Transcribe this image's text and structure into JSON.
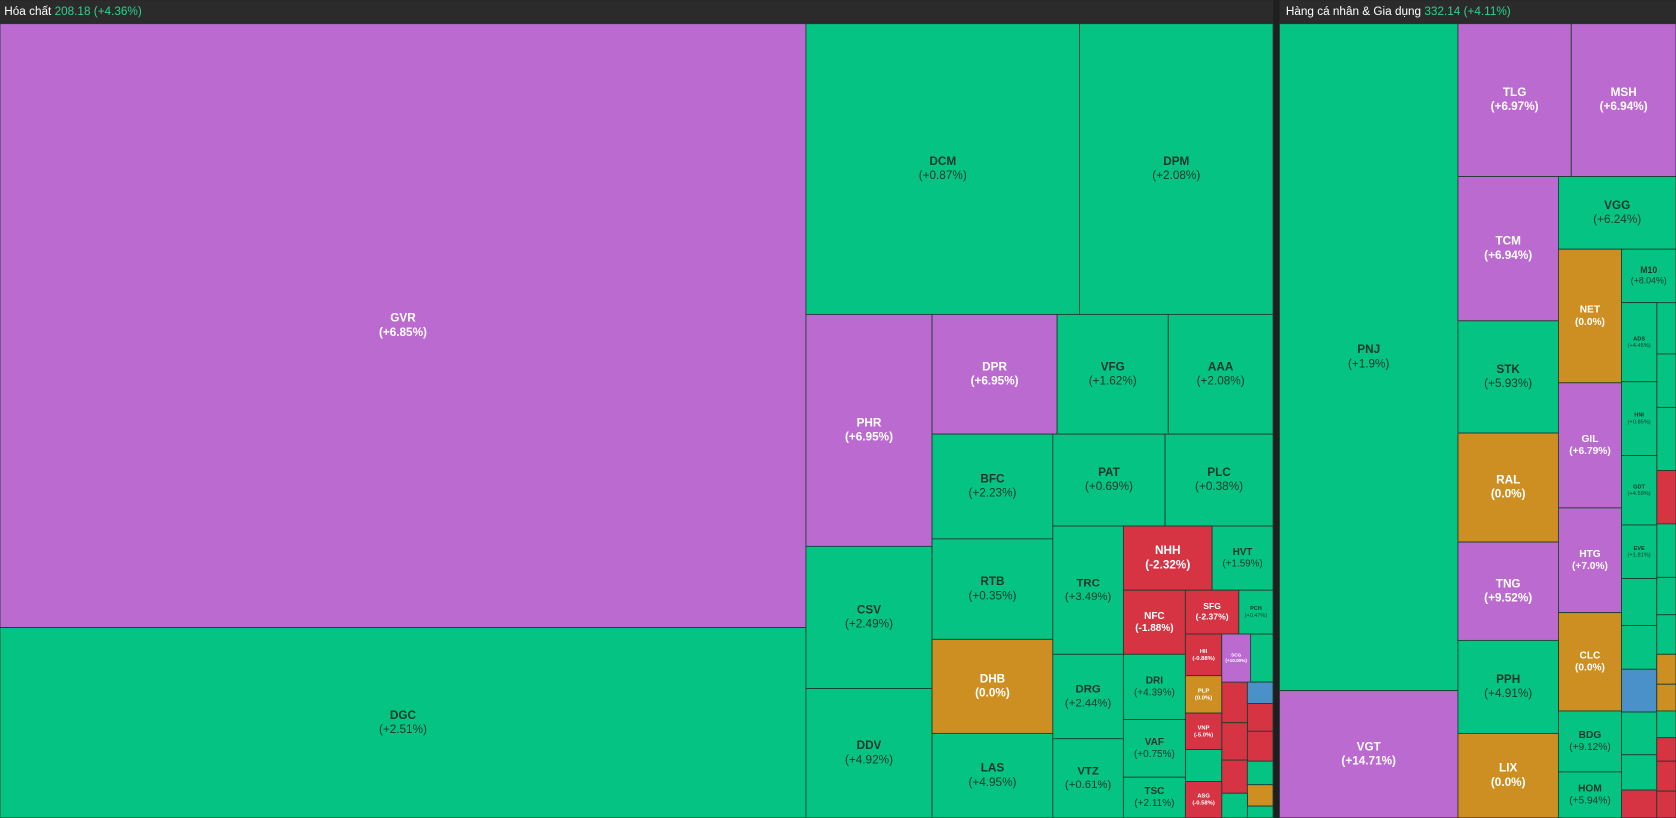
{
  "panels": [
    {
      "name": "Hóa chất",
      "index": "208.18",
      "change": "(+4.36%)",
      "tiles": [
        {
          "ticker": "GVR",
          "change": "(+6.85%)",
          "color": "#bb6bd0"
        },
        {
          "ticker": "DGC",
          "change": "(+2.51%)",
          "color": "#05c483"
        },
        {
          "ticker": "DCM",
          "change": "(+0.87%)",
          "color": "#05c483"
        },
        {
          "ticker": "DPM",
          "change": "(+2.08%)",
          "color": "#05c483"
        },
        {
          "ticker": "PHR",
          "change": "(+6.95%)",
          "color": "#bb6bd0"
        },
        {
          "ticker": "CSV",
          "change": "(+2.49%)",
          "color": "#05c483"
        },
        {
          "ticker": "DDV",
          "change": "(+4.92%)",
          "color": "#05c483"
        },
        {
          "ticker": "DPR",
          "change": "(+6.95%)",
          "color": "#bb6bd0"
        },
        {
          "ticker": "VFG",
          "change": "(+1.62%)",
          "color": "#05c483"
        },
        {
          "ticker": "AAA",
          "change": "(+2.08%)",
          "color": "#05c483"
        },
        {
          "ticker": "BFC",
          "change": "(+2.23%)",
          "color": "#05c483"
        },
        {
          "ticker": "PAT",
          "change": "(+0.69%)",
          "color": "#05c483"
        },
        {
          "ticker": "PLC",
          "change": "(+0.38%)",
          "color": "#05c483"
        },
        {
          "ticker": "RTB",
          "change": "(+0.35%)",
          "color": "#05c483"
        },
        {
          "ticker": "DHB",
          "change": "(0.0%)",
          "color": "#cd8f22"
        },
        {
          "ticker": "LAS",
          "change": "(+4.95%)",
          "color": "#05c483"
        },
        {
          "ticker": "TRC",
          "change": "(+3.49%)",
          "color": "#05c483"
        },
        {
          "ticker": "NHH",
          "change": "(-2.32%)",
          "color": "#d63343"
        },
        {
          "ticker": "HVT",
          "change": "(+1.59%)",
          "color": "#05c483"
        },
        {
          "ticker": "NFC",
          "change": "(-1.88%)",
          "color": "#d63343"
        },
        {
          "ticker": "SFG",
          "change": "(-2.37%)",
          "color": "#d63343"
        },
        {
          "ticker": "PCH",
          "change": "(+0.47%)",
          "color": "#05c483"
        },
        {
          "ticker": "DRG",
          "change": "(+2.44%)",
          "color": "#05c483"
        },
        {
          "ticker": "DRI",
          "change": "(+4.39%)",
          "color": "#05c483"
        },
        {
          "ticker": "VTZ",
          "change": "(+0.61%)",
          "color": "#05c483"
        },
        {
          "ticker": "VAF",
          "change": "(+0.75%)",
          "color": "#05c483"
        },
        {
          "ticker": "TSC",
          "change": "(+2.11%)",
          "color": "#05c483"
        },
        {
          "ticker": "HII",
          "change": "(-0.88%)",
          "color": "#d63343"
        },
        {
          "ticker": "SCG",
          "change": "(+10.00%)",
          "color": "#bb6bd0"
        },
        {
          "ticker": "PLP",
          "change": "(0.0%)",
          "color": "#cd8f22"
        },
        {
          "ticker": "VNP",
          "change": "(-5.0%)",
          "color": "#d63343"
        },
        {
          "ticker": "ASG",
          "change": "(-0.58%)",
          "color": "#d63343"
        }
      ]
    },
    {
      "name": "Hàng cá nhân & Gia dụng",
      "index": "332.14",
      "change": "(+4.11%)",
      "tiles": [
        {
          "ticker": "PNJ",
          "change": "(+1.9%)",
          "color": "#05c483"
        },
        {
          "ticker": "VGT",
          "change": "(+14.71%)",
          "color": "#bb6bd0"
        },
        {
          "ticker": "TLG",
          "change": "(+6.97%)",
          "color": "#bb6bd0"
        },
        {
          "ticker": "MSH",
          "change": "(+6.94%)",
          "color": "#bb6bd0"
        },
        {
          "ticker": "TCM",
          "change": "(+6.94%)",
          "color": "#bb6bd0"
        },
        {
          "ticker": "VGG",
          "change": "(+6.24%)",
          "color": "#05c483"
        },
        {
          "ticker": "STK",
          "change": "(+5.93%)",
          "color": "#05c483"
        },
        {
          "ticker": "NET",
          "change": "(0.0%)",
          "color": "#cd8f22"
        },
        {
          "ticker": "M10",
          "change": "(+8.04%)",
          "color": "#05c483"
        },
        {
          "ticker": "RAL",
          "change": "(0.0%)",
          "color": "#cd8f22"
        },
        {
          "ticker": "GIL",
          "change": "(+6.79%)",
          "color": "#bb6bd0"
        },
        {
          "ticker": "ADS",
          "change": "(+4.45%)",
          "color": "#05c483"
        },
        {
          "ticker": "HNI",
          "change": "(+0.85%)",
          "color": "#05c483"
        },
        {
          "ticker": "GDT",
          "change": "(+4.59%)",
          "color": "#05c483"
        },
        {
          "ticker": "EVE",
          "change": "(+1.81%)",
          "color": "#05c483"
        },
        {
          "ticker": "TNG",
          "change": "(+9.52%)",
          "color": "#bb6bd0"
        },
        {
          "ticker": "HTG",
          "change": "(+7.0%)",
          "color": "#bb6bd0"
        },
        {
          "ticker": "CLC",
          "change": "(0.0%)",
          "color": "#cd8f22"
        },
        {
          "ticker": "PPH",
          "change": "(+4.91%)",
          "color": "#05c483"
        },
        {
          "ticker": "LIX",
          "change": "(0.0%)",
          "color": "#cd8f22"
        },
        {
          "ticker": "BDG",
          "change": "(+9.12%)",
          "color": "#05c483"
        },
        {
          "ticker": "HOM",
          "change": "(+5.94%)",
          "color": "#05c483"
        }
      ]
    }
  ]
}
